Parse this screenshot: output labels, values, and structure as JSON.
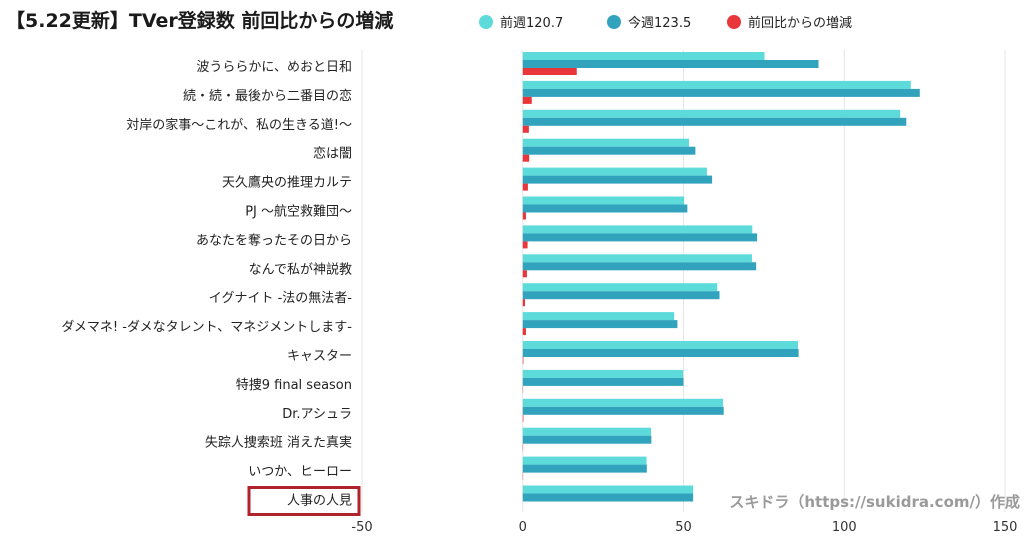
{
  "title": "【5.22更新】TVer登録数 前回比からの増減",
  "watermark": "スキドラ（https://sukidra.com/）作成",
  "colors": {
    "prev_week": "#5ddbdb",
    "this_week": "#31a3bd",
    "diff": "#e8363a",
    "grid": "#e6e6e6",
    "highlight_box": "#b0222c"
  },
  "highlighted_category": "人事の人見",
  "chart_data": {
    "type": "bar",
    "orientation": "horizontal",
    "title": "【5.22更新】TVer登録数 前回比からの増減",
    "xlim": [
      -50,
      150
    ],
    "xticks": [
      -50,
      0,
      50,
      100,
      150
    ],
    "legend_position": "top",
    "grid": true,
    "categories": [
      "波うららかに、めおと日和",
      "続・続・最後から二番目の恋",
      "対岸の家事〜これが、私の生きる道!〜",
      "恋は闇",
      "天久鷹央の推理カルテ",
      "PJ 〜航空救難団〜",
      "あなたを奪ったその日から",
      "なんで私が神説教",
      "イグナイト -法の無法者-",
      "ダメマネ! -ダメなタレント、マネジメントします-",
      "キャスター",
      "特捜9 final season",
      "Dr.アシュラ",
      "失踪人捜索班 消えた真実",
      "いつか、ヒーロー",
      "人事の人見"
    ],
    "series": [
      {
        "name": "前週120.7",
        "color": "#5ddbdb",
        "values": [
          75.2,
          120.7,
          117.4,
          51.7,
          57.3,
          50.2,
          71.4,
          71.3,
          60.5,
          47.1,
          85.6,
          49.9,
          62.3,
          39.9,
          38.5,
          53.0
        ]
      },
      {
        "name": "今週123.5",
        "color": "#31a3bd",
        "values": [
          92.0,
          123.5,
          119.3,
          53.7,
          58.9,
          51.2,
          72.9,
          72.6,
          61.2,
          48.1,
          85.8,
          50.0,
          62.5,
          40.0,
          38.6,
          53.0
        ]
      },
      {
        "name": "前回比からの増減",
        "color": "#e8363a",
        "values": [
          16.8,
          2.8,
          1.9,
          2.0,
          1.6,
          1.0,
          1.5,
          1.3,
          0.7,
          1.0,
          0.2,
          0.1,
          0.2,
          0.1,
          0.1,
          0.0
        ]
      }
    ]
  }
}
